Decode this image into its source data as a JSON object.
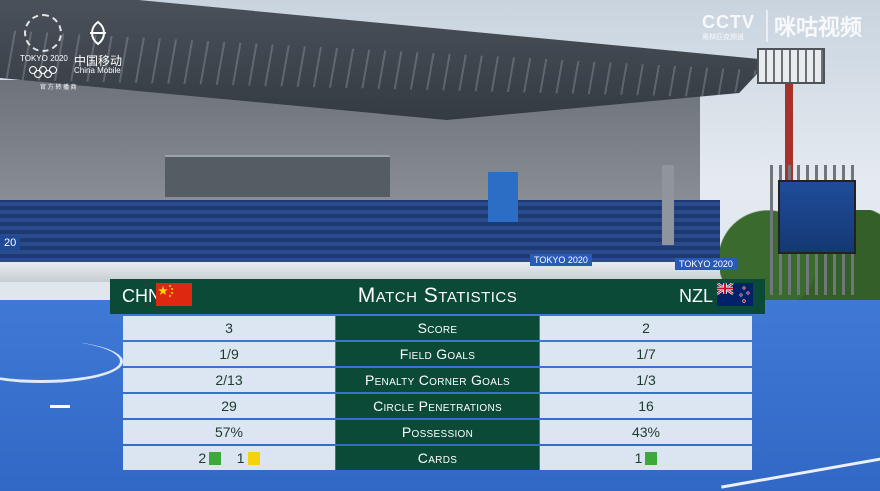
{
  "broadcast": {
    "left_logo": {
      "games": "TOKYO 2020",
      "partner_cn": "中国移动",
      "partner_en": "China Mobile",
      "slogan": "官 方 转 播 商"
    },
    "right_logo": {
      "network": "CCTV",
      "network_sub": "奥林匹克频道",
      "app": "咪咕视频"
    }
  },
  "venue_boards": [
    "TOKYO 2020",
    "TOKYO 2020",
    "20"
  ],
  "panel": {
    "title": "Match Statistics",
    "team_left": "CHN",
    "team_right": "NZL",
    "colors": {
      "panel_green": "#0b4a36",
      "chn_flag": "#de2910",
      "nzl_flag": "#012169",
      "green_card": "#3da93b",
      "yellow_card": "#f4d20d"
    }
  },
  "stats": [
    {
      "label": "Score",
      "left": "3",
      "right": "2"
    },
    {
      "label": "Field Goals",
      "left": "1/9",
      "right": "1/7"
    },
    {
      "label": "Penalty Corner Goals",
      "left": "2/13",
      "right": "1/3"
    },
    {
      "label": "Circle Penetrations",
      "left": "29",
      "right": "16"
    },
    {
      "label": "Possession",
      "left": "57%",
      "right": "43%"
    },
    {
      "label": "Cards",
      "left_green": "2",
      "left_yellow": "1",
      "right_green": "1"
    }
  ]
}
